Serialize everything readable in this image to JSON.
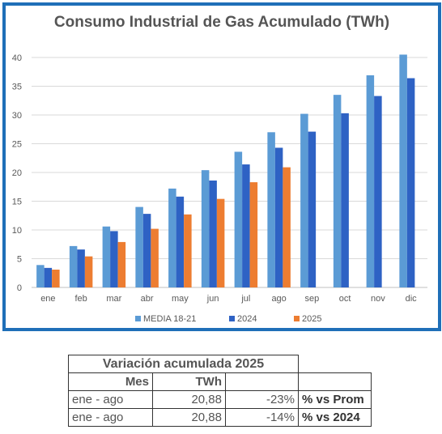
{
  "chart_data": {
    "type": "bar",
    "title": "Consumo Industrial de Gas Acumulado (TWh)",
    "categories": [
      "ene",
      "feb",
      "mar",
      "abr",
      "may",
      "jun",
      "jul",
      "ago",
      "sep",
      "oct",
      "nov",
      "dic"
    ],
    "ylim": [
      0,
      40
    ],
    "yticks": [
      0,
      5,
      10,
      15,
      20,
      25,
      30,
      35,
      40
    ],
    "grid": true,
    "legend_position": "bottom",
    "series": [
      {
        "name": "MEDIA 18-21",
        "color": "#5b9bd5",
        "values": [
          3.9,
          7.2,
          10.6,
          14.0,
          17.2,
          20.4,
          23.6,
          27.0,
          30.2,
          33.5,
          36.9,
          40.5
        ]
      },
      {
        "name": "2024",
        "color": "#2e62c4",
        "values": [
          3.4,
          6.6,
          9.8,
          12.8,
          15.8,
          18.6,
          21.4,
          24.3,
          27.1,
          30.3,
          33.3,
          36.4
        ]
      },
      {
        "name": "2025",
        "color": "#ed7d31",
        "values": [
          3.1,
          5.4,
          7.9,
          10.2,
          12.7,
          15.4,
          18.3,
          20.9,
          null,
          null,
          null,
          null
        ]
      }
    ]
  },
  "table": {
    "title": "Variación acumulada 2025",
    "col_mes": "Mes",
    "col_twh": "TWh",
    "rows": [
      {
        "mes": "ene - ago",
        "twh": "20,88",
        "pct": "-23%",
        "note": "% vs Prom"
      },
      {
        "mes": "ene - ago",
        "twh": "20,88",
        "pct": "-14%",
        "note": "% vs 2024"
      }
    ]
  }
}
